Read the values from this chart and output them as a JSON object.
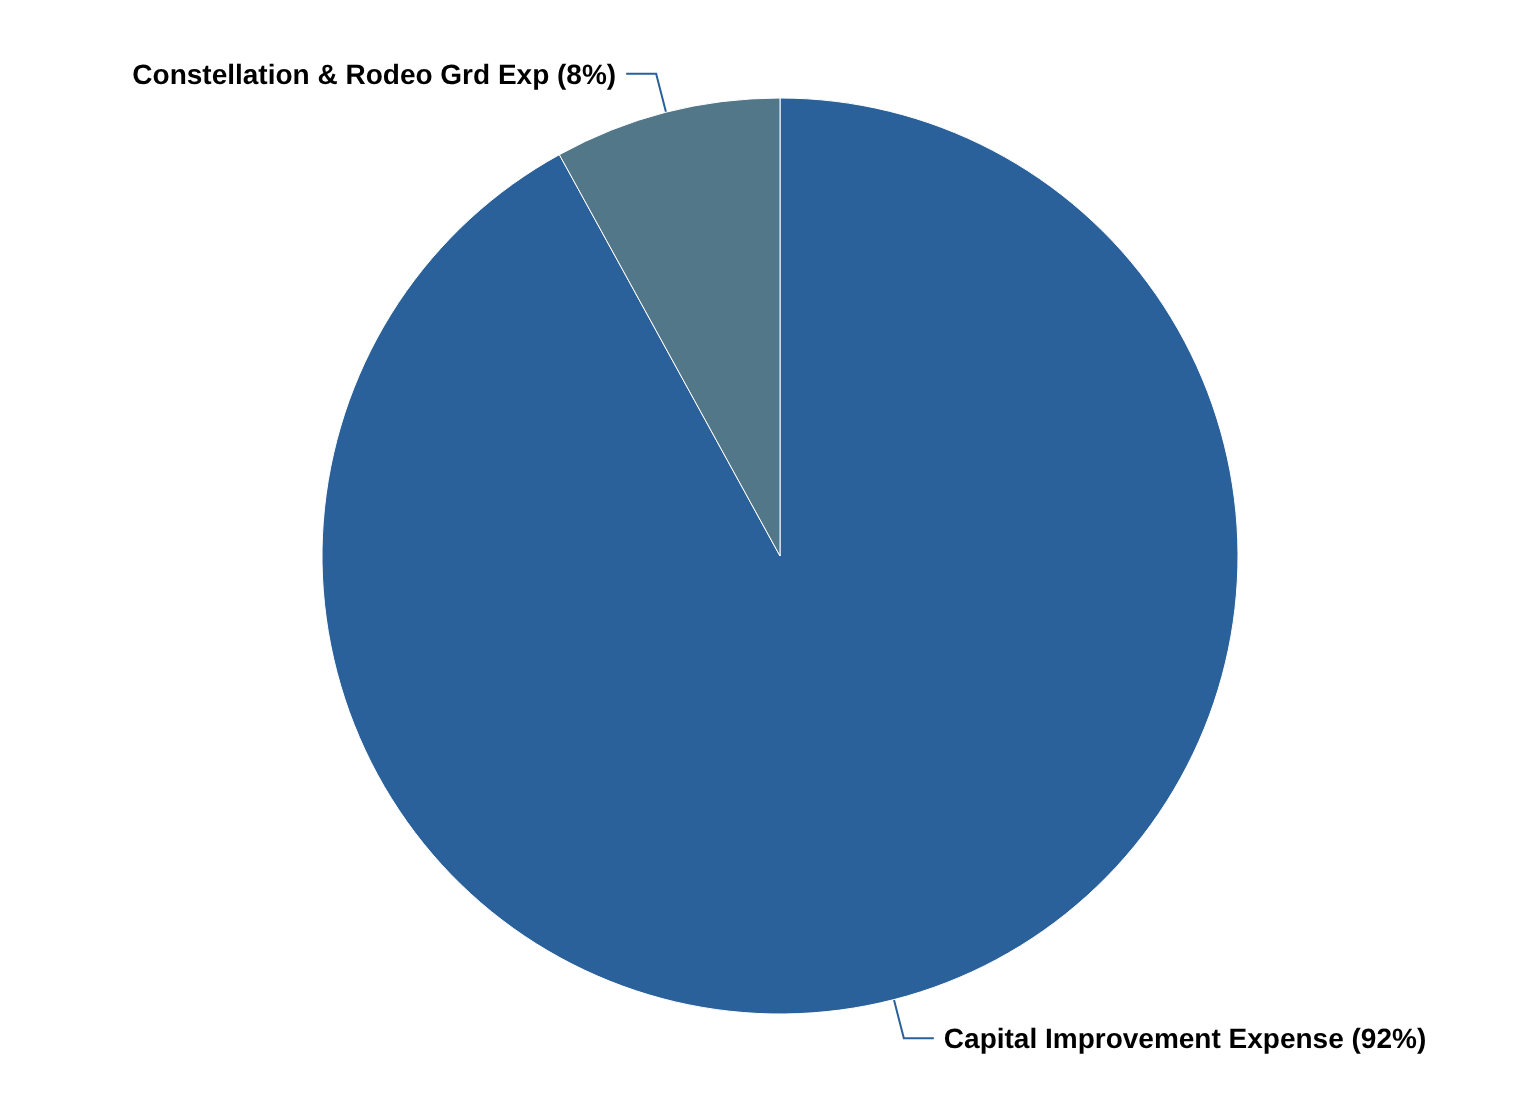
{
  "chart_data": {
    "type": "pie",
    "categories": [
      "Capital Improvement Expense",
      "Constellation & Rodeo Grd Exp"
    ],
    "values": [
      92,
      8
    ],
    "value_labels": [
      "(92%)",
      "(8%)"
    ],
    "colors": [
      "#2a619a",
      "#527789"
    ],
    "legend": false
  }
}
